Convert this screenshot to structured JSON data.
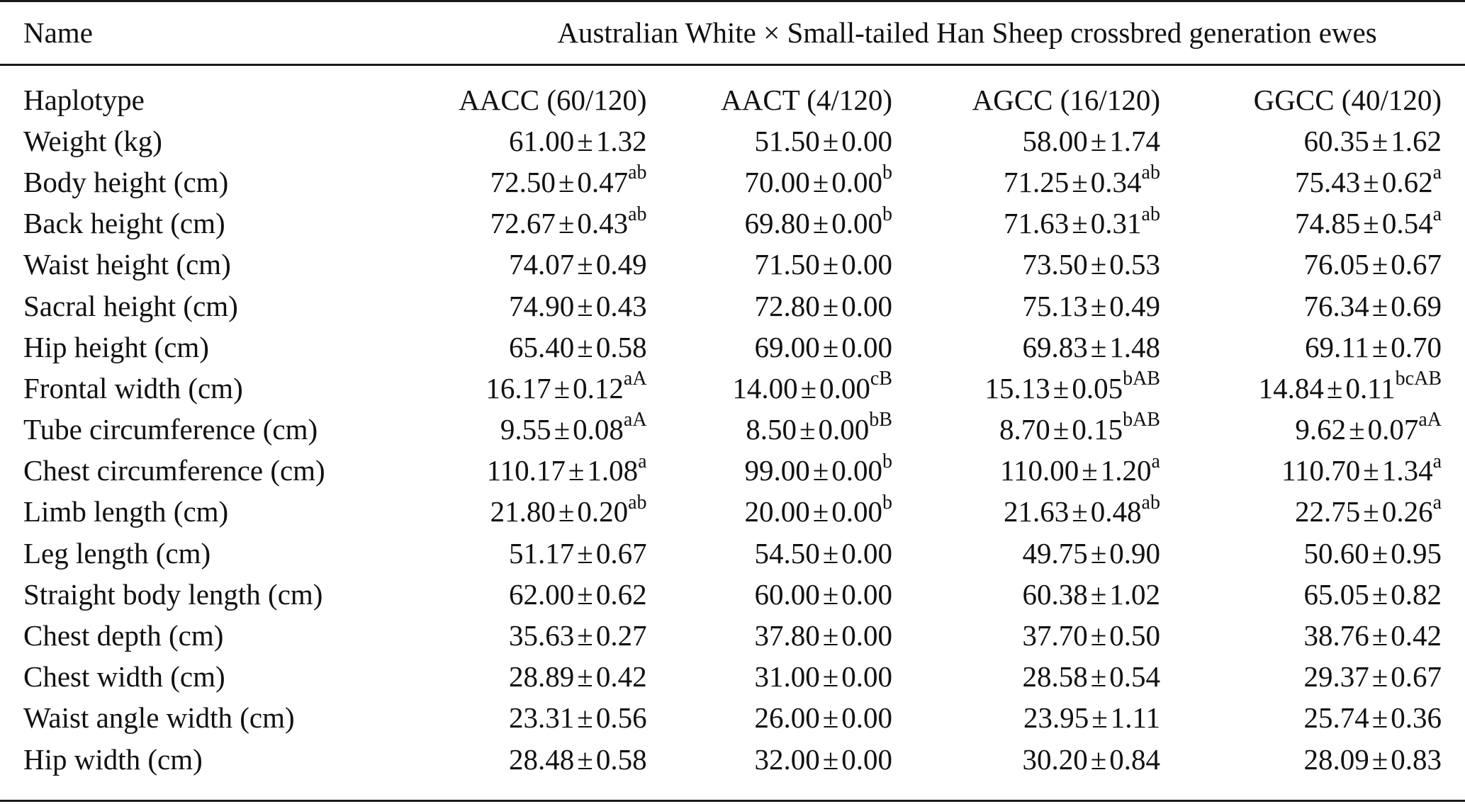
{
  "table": {
    "header": {
      "name_label": "Name",
      "group_label": "Australian White × Small-tailed Han Sheep crossbred generation ewes"
    },
    "haplotype_row": {
      "label": "Haplotype",
      "values": [
        "AACC (60/120)",
        "AACT (4/120)",
        "AGCC (16/120)",
        "GGCC (40/120)"
      ]
    },
    "pm_symbol": "±",
    "rows": [
      {
        "label": "Weight (kg)",
        "cells": [
          {
            "mean": "61.00",
            "se": "1.32",
            "sup": ""
          },
          {
            "mean": "51.50",
            "se": "0.00",
            "sup": ""
          },
          {
            "mean": "58.00",
            "se": "1.74",
            "sup": ""
          },
          {
            "mean": "60.35",
            "se": "1.62",
            "sup": ""
          }
        ]
      },
      {
        "label": "Body height (cm)",
        "cells": [
          {
            "mean": "72.50",
            "se": "0.47",
            "sup": "ab"
          },
          {
            "mean": "70.00",
            "se": "0.00",
            "sup": "b"
          },
          {
            "mean": "71.25",
            "se": "0.34",
            "sup": "ab"
          },
          {
            "mean": "75.43",
            "se": "0.62",
            "sup": "a"
          }
        ]
      },
      {
        "label": "Back height (cm)",
        "cells": [
          {
            "mean": "72.67",
            "se": "0.43",
            "sup": "ab"
          },
          {
            "mean": "69.80",
            "se": "0.00",
            "sup": "b"
          },
          {
            "mean": "71.63",
            "se": "0.31",
            "sup": "ab"
          },
          {
            "mean": "74.85",
            "se": "0.54",
            "sup": "a"
          }
        ]
      },
      {
        "label": "Waist height (cm)",
        "cells": [
          {
            "mean": "74.07",
            "se": "0.49",
            "sup": ""
          },
          {
            "mean": "71.50",
            "se": "0.00",
            "sup": ""
          },
          {
            "mean": "73.50",
            "se": "0.53",
            "sup": ""
          },
          {
            "mean": "76.05",
            "se": "0.67",
            "sup": ""
          }
        ]
      },
      {
        "label": "Sacral height (cm)",
        "cells": [
          {
            "mean": "74.90",
            "se": "0.43",
            "sup": ""
          },
          {
            "mean": "72.80",
            "se": "0.00",
            "sup": ""
          },
          {
            "mean": "75.13",
            "se": "0.49",
            "sup": ""
          },
          {
            "mean": "76.34",
            "se": "0.69",
            "sup": ""
          }
        ]
      },
      {
        "label": "Hip height (cm)",
        "cells": [
          {
            "mean": "65.40",
            "se": "0.58",
            "sup": ""
          },
          {
            "mean": "69.00",
            "se": "0.00",
            "sup": ""
          },
          {
            "mean": "69.83",
            "se": "1.48",
            "sup": ""
          },
          {
            "mean": "69.11",
            "se": "0.70",
            "sup": ""
          }
        ]
      },
      {
        "label": "Frontal width (cm)",
        "cells": [
          {
            "mean": "16.17",
            "se": "0.12",
            "sup": "aA"
          },
          {
            "mean": "14.00",
            "se": "0.00",
            "sup": "cB"
          },
          {
            "mean": "15.13",
            "se": "0.05",
            "sup": "bAB"
          },
          {
            "mean": "14.84",
            "se": "0.11",
            "sup": "bcAB"
          }
        ]
      },
      {
        "label": "Tube circumference (cm)",
        "cells": [
          {
            "mean": "9.55",
            "se": "0.08",
            "sup": "aA"
          },
          {
            "mean": "8.50",
            "se": "0.00",
            "sup": "bB"
          },
          {
            "mean": "8.70",
            "se": "0.15",
            "sup": "bAB"
          },
          {
            "mean": "9.62",
            "se": "0.07",
            "sup": "aA"
          }
        ]
      },
      {
        "label": "Chest circumference (cm)",
        "cells": [
          {
            "mean": "110.17",
            "se": "1.08",
            "sup": "a"
          },
          {
            "mean": "99.00",
            "se": "0.00",
            "sup": "b"
          },
          {
            "mean": "110.00",
            "se": "1.20",
            "sup": "a"
          },
          {
            "mean": "110.70",
            "se": "1.34",
            "sup": "a"
          }
        ]
      },
      {
        "label": "Limb length (cm)",
        "cells": [
          {
            "mean": "21.80",
            "se": "0.20",
            "sup": "ab"
          },
          {
            "mean": "20.00",
            "se": "0.00",
            "sup": "b"
          },
          {
            "mean": "21.63",
            "se": "0.48",
            "sup": "ab"
          },
          {
            "mean": "22.75",
            "se": "0.26",
            "sup": "a"
          }
        ]
      },
      {
        "label": "Leg length (cm)",
        "cells": [
          {
            "mean": "51.17",
            "se": "0.67",
            "sup": ""
          },
          {
            "mean": "54.50",
            "se": "0.00",
            "sup": ""
          },
          {
            "mean": "49.75",
            "se": "0.90",
            "sup": ""
          },
          {
            "mean": "50.60",
            "se": "0.95",
            "sup": ""
          }
        ]
      },
      {
        "label": "Straight body length (cm)",
        "cells": [
          {
            "mean": "62.00",
            "se": "0.62",
            "sup": ""
          },
          {
            "mean": "60.00",
            "se": "0.00",
            "sup": ""
          },
          {
            "mean": "60.38",
            "se": "1.02",
            "sup": ""
          },
          {
            "mean": "65.05",
            "se": "0.82",
            "sup": ""
          }
        ]
      },
      {
        "label": "Chest depth (cm)",
        "cells": [
          {
            "mean": "35.63",
            "se": "0.27",
            "sup": ""
          },
          {
            "mean": "37.80",
            "se": "0.00",
            "sup": ""
          },
          {
            "mean": "37.70",
            "se": "0.50",
            "sup": ""
          },
          {
            "mean": "38.76",
            "se": "0.42",
            "sup": ""
          }
        ]
      },
      {
        "label": "Chest width (cm)",
        "cells": [
          {
            "mean": "28.89",
            "se": "0.42",
            "sup": ""
          },
          {
            "mean": "31.00",
            "se": "0.00",
            "sup": ""
          },
          {
            "mean": "28.58",
            "se": "0.54",
            "sup": ""
          },
          {
            "mean": "29.37",
            "se": "0.67",
            "sup": ""
          }
        ]
      },
      {
        "label": "Waist angle width (cm)",
        "cells": [
          {
            "mean": "23.31",
            "se": "0.56",
            "sup": ""
          },
          {
            "mean": "26.00",
            "se": "0.00",
            "sup": ""
          },
          {
            "mean": "23.95",
            "se": "1.11",
            "sup": ""
          },
          {
            "mean": "25.74",
            "se": "0.36",
            "sup": ""
          }
        ]
      },
      {
        "label": "Hip width (cm)",
        "cells": [
          {
            "mean": "28.48",
            "se": "0.58",
            "sup": ""
          },
          {
            "mean": "32.00",
            "se": "0.00",
            "sup": ""
          },
          {
            "mean": "30.20",
            "se": "0.84",
            "sup": ""
          },
          {
            "mean": "28.09",
            "se": "0.83",
            "sup": ""
          }
        ]
      }
    ]
  }
}
